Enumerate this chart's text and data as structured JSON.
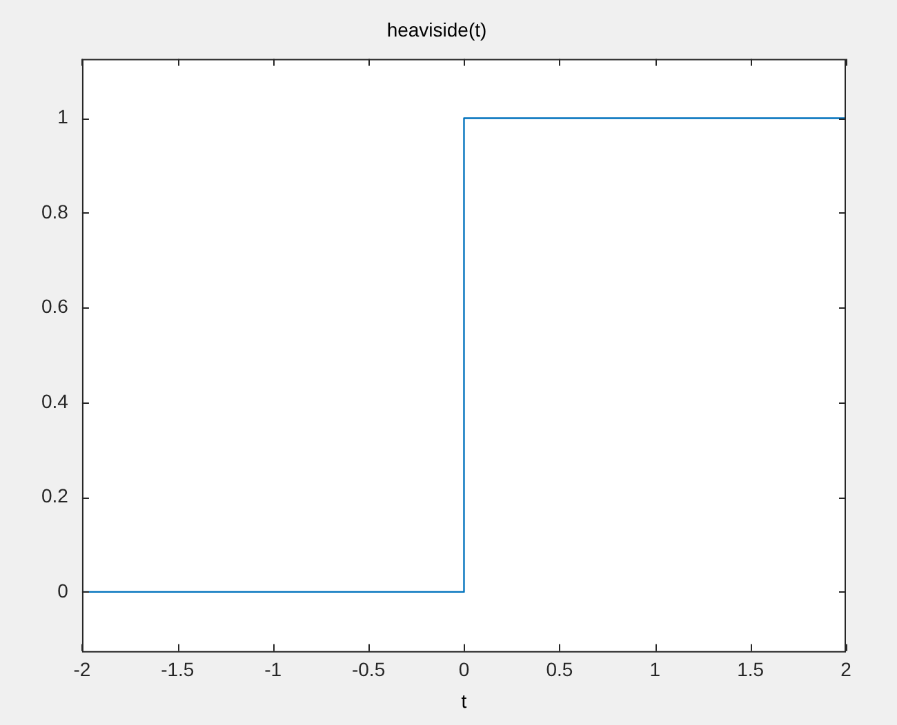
{
  "chart_data": {
    "type": "line",
    "title": "heaviside(t)",
    "xlabel": "t",
    "x": [
      -2,
      0,
      0,
      2
    ],
    "series": [
      {
        "color": "#0072bd",
        "values": [
          0,
          0,
          1,
          1
        ]
      }
    ],
    "xlim": [
      -2,
      2
    ],
    "xticks": [
      -2,
      -1.5,
      -1,
      -0.5,
      0,
      0.5,
      1,
      1.5,
      2
    ],
    "ylim": [
      -0.125,
      1.125
    ],
    "yticks": [
      0,
      0.2,
      0.4,
      0.6,
      0.8,
      1
    ],
    "grid": false,
    "legend": false,
    "marker": "none",
    "line_style": "solid"
  }
}
